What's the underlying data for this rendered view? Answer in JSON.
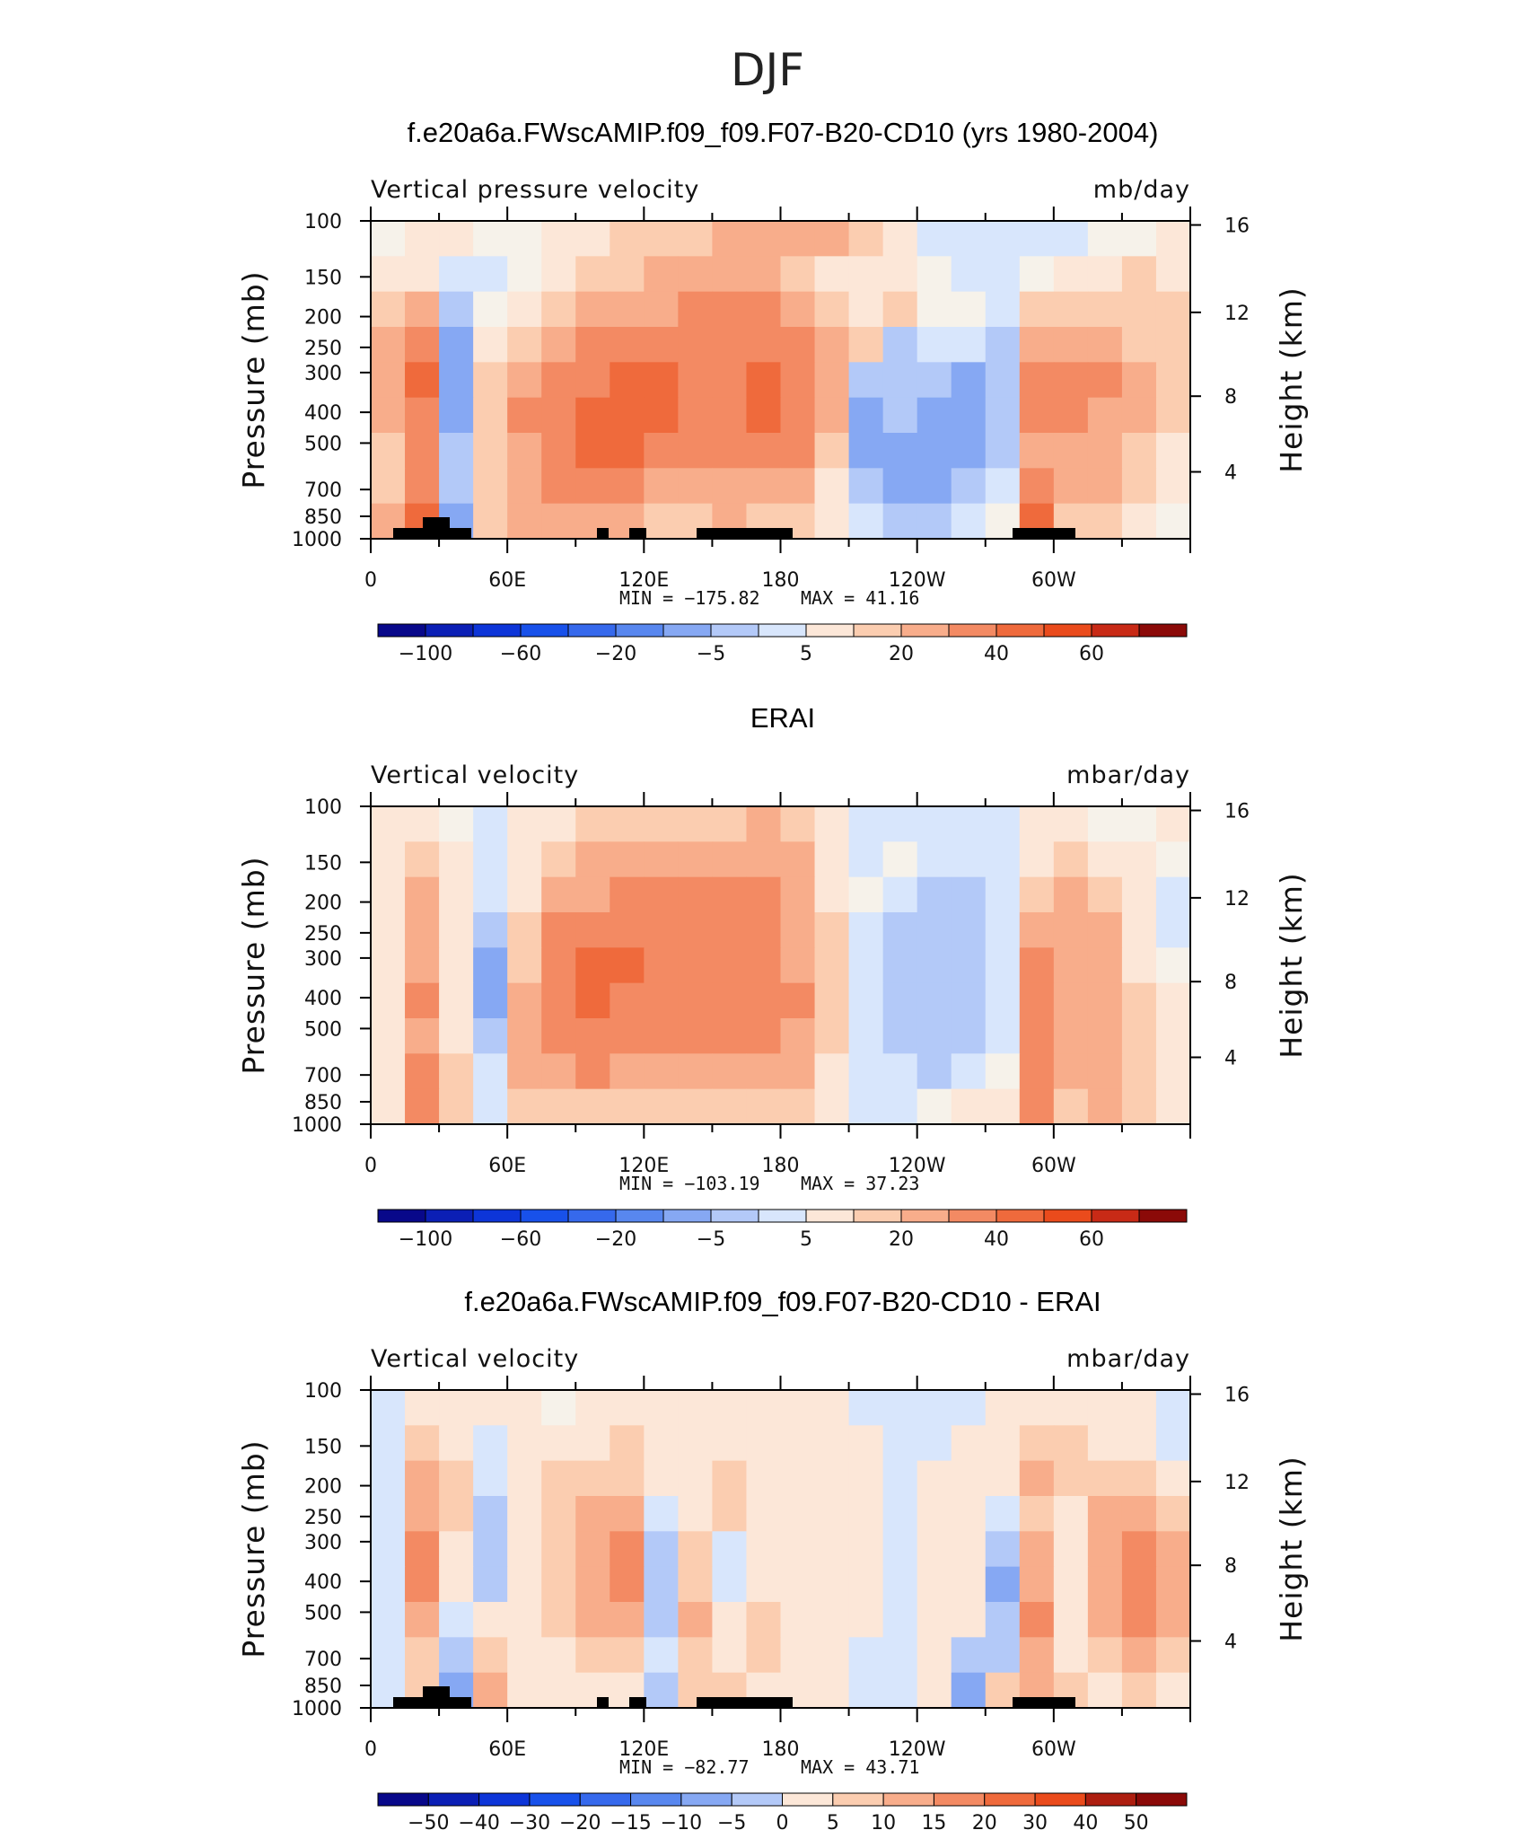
{
  "figure_title": "DJF",
  "chart_data": [
    {
      "type": "heatmap",
      "title": "f.e20a6a.FWscAMIP.f09_f09.F07-B20-CD10 (yrs 1980-2004)",
      "variable_label": "Vertical pressure velocity",
      "units": "mb/day",
      "ylabel": "Pressure (mb)",
      "y2label": "Height (km)",
      "y_ticks": [
        "100",
        "150",
        "200",
        "250",
        "300",
        "400",
        "500",
        "700",
        "850",
        "1000"
      ],
      "y2_ticks": [
        "16",
        "12",
        "8",
        "4"
      ],
      "x_ticks": [
        "0",
        "60E",
        "120E",
        "180",
        "120W",
        "60W"
      ],
      "stats": {
        "min_label": "MIN =",
        "min": "-175.82",
        "max_label": "MAX =",
        "max": "41.16"
      },
      "colorbar_labels": [
        "-100",
        "-60",
        "-20",
        "-5",
        "5",
        "20",
        "40",
        "60"
      ],
      "cells": [
        [
          0,
          1,
          1,
          0,
          0,
          1,
          1,
          2,
          2,
          2,
          3,
          3,
          3,
          3,
          2,
          1,
          -1,
          -1,
          -1,
          -1,
          -1,
          0,
          0,
          1
        ],
        [
          1,
          1,
          -1,
          -1,
          0,
          1,
          2,
          2,
          3,
          3,
          3,
          3,
          2,
          1,
          1,
          1,
          0,
          -1,
          -1,
          0,
          1,
          1,
          2,
          1
        ],
        [
          2,
          3,
          -2,
          0,
          1,
          2,
          3,
          3,
          3,
          4,
          4,
          4,
          3,
          2,
          1,
          2,
          0,
          0,
          -1,
          2,
          2,
          2,
          2,
          2
        ],
        [
          3,
          4,
          -3,
          1,
          2,
          3,
          4,
          4,
          4,
          4,
          4,
          4,
          4,
          3,
          2,
          -2,
          -1,
          -1,
          -2,
          3,
          3,
          3,
          2,
          2
        ],
        [
          3,
          5,
          -3,
          2,
          3,
          4,
          4,
          5,
          5,
          4,
          4,
          5,
          4,
          3,
          -2,
          -2,
          -2,
          -3,
          -2,
          4,
          4,
          4,
          3,
          2
        ],
        [
          3,
          4,
          -3,
          2,
          4,
          4,
          5,
          5,
          5,
          4,
          4,
          5,
          4,
          3,
          -3,
          -2,
          -3,
          -3,
          -2,
          4,
          4,
          3,
          3,
          2
        ],
        [
          2,
          4,
          -2,
          2,
          3,
          4,
          5,
          5,
          4,
          4,
          4,
          4,
          4,
          2,
          -3,
          -3,
          -3,
          -3,
          -2,
          3,
          3,
          3,
          2,
          1
        ],
        [
          2,
          4,
          -2,
          2,
          3,
          4,
          4,
          4,
          3,
          3,
          3,
          3,
          3,
          1,
          -2,
          -3,
          -3,
          -2,
          -1,
          4,
          3,
          3,
          2,
          1
        ],
        [
          3,
          5,
          -3,
          2,
          3,
          3,
          3,
          3,
          2,
          2,
          3,
          2,
          2,
          1,
          -1,
          -2,
          -2,
          -1,
          0,
          5,
          2,
          2,
          1,
          0
        ]
      ]
    },
    {
      "type": "heatmap",
      "title": "ERAI",
      "variable_label": "Vertical velocity",
      "units": "mbar/day",
      "ylabel": "Pressure (mb)",
      "y2label": "Height (km)",
      "y_ticks": [
        "100",
        "150",
        "200",
        "250",
        "300",
        "400",
        "500",
        "700",
        "850",
        "1000"
      ],
      "y2_ticks": [
        "16",
        "12",
        "8",
        "4"
      ],
      "x_ticks": [
        "0",
        "60E",
        "120E",
        "180",
        "120W",
        "60W"
      ],
      "stats": {
        "min_label": "MIN =",
        "min": "-103.19",
        "max_label": "MAX =",
        "max": "37.23"
      },
      "colorbar_labels": [
        "-100",
        "-60",
        "-20",
        "-5",
        "5",
        "20",
        "40",
        "60"
      ],
      "cells": [
        [
          1,
          1,
          0,
          -1,
          1,
          1,
          2,
          2,
          2,
          2,
          2,
          3,
          2,
          1,
          -1,
          -1,
          -1,
          -1,
          -1,
          1,
          1,
          0,
          0,
          1
        ],
        [
          1,
          2,
          1,
          -1,
          1,
          2,
          3,
          3,
          3,
          3,
          3,
          3,
          3,
          1,
          -1,
          0,
          -1,
          -1,
          -1,
          1,
          2,
          1,
          1,
          0
        ],
        [
          1,
          3,
          1,
          -1,
          1,
          3,
          3,
          4,
          4,
          4,
          4,
          4,
          3,
          1,
          0,
          -1,
          -2,
          -2,
          -1,
          2,
          3,
          2,
          1,
          -1
        ],
        [
          1,
          3,
          1,
          -2,
          2,
          4,
          4,
          4,
          4,
          4,
          4,
          4,
          3,
          2,
          -1,
          -2,
          -2,
          -2,
          -1,
          3,
          3,
          3,
          1,
          -1
        ],
        [
          1,
          3,
          1,
          -3,
          2,
          4,
          5,
          5,
          4,
          4,
          4,
          4,
          3,
          2,
          -1,
          -2,
          -2,
          -2,
          -1,
          4,
          3,
          3,
          1,
          0
        ],
        [
          1,
          4,
          1,
          -3,
          3,
          4,
          5,
          4,
          4,
          4,
          4,
          4,
          4,
          2,
          -1,
          -2,
          -2,
          -2,
          -1,
          4,
          3,
          3,
          2,
          1
        ],
        [
          1,
          3,
          1,
          -2,
          3,
          4,
          4,
          4,
          4,
          4,
          4,
          4,
          3,
          2,
          -1,
          -2,
          -2,
          -2,
          -1,
          4,
          3,
          3,
          2,
          1
        ],
        [
          1,
          4,
          2,
          -1,
          3,
          3,
          4,
          3,
          3,
          3,
          3,
          3,
          3,
          1,
          -1,
          -1,
          -2,
          -1,
          0,
          4,
          3,
          3,
          2,
          1
        ],
        [
          1,
          4,
          2,
          -1,
          2,
          2,
          2,
          2,
          2,
          2,
          2,
          2,
          2,
          1,
          -1,
          -1,
          0,
          1,
          1,
          4,
          2,
          3,
          2,
          1
        ]
      ]
    },
    {
      "type": "heatmap",
      "title": "f.e20a6a.FWscAMIP.f09_f09.F07-B20-CD10 - ERAI",
      "variable_label": "Vertical velocity",
      "units": "mbar/day",
      "ylabel": "Pressure (mb)",
      "y2label": "Height (km)",
      "y_ticks": [
        "100",
        "150",
        "200",
        "250",
        "300",
        "400",
        "500",
        "700",
        "850",
        "1000"
      ],
      "y2_ticks": [
        "16",
        "12",
        "8",
        "4"
      ],
      "x_ticks": [
        "0",
        "60E",
        "120E",
        "180",
        "120W",
        "60W"
      ],
      "stats": {
        "min_label": "MIN =",
        "min": "-82.77",
        "max_label": "MAX =",
        "max": "43.71"
      },
      "colorbar_labels": [
        "-50",
        "-40",
        "-30",
        "-20",
        "-15",
        "-10",
        "-5",
        "0",
        "5",
        "10",
        "15",
        "20",
        "30",
        "40",
        "50"
      ],
      "cells": [
        [
          -1,
          1,
          1,
          1,
          1,
          0,
          1,
          1,
          1,
          1,
          1,
          1,
          1,
          1,
          -1,
          -1,
          -1,
          -1,
          1,
          1,
          1,
          1,
          1,
          -1
        ],
        [
          -1,
          2,
          1,
          -1,
          1,
          1,
          1,
          2,
          1,
          1,
          1,
          1,
          1,
          1,
          1,
          -1,
          -1,
          1,
          1,
          2,
          2,
          1,
          1,
          -1
        ],
        [
          -1,
          3,
          2,
          -1,
          1,
          2,
          2,
          2,
          1,
          1,
          2,
          1,
          1,
          1,
          1,
          -1,
          1,
          1,
          1,
          3,
          2,
          2,
          2,
          1
        ],
        [
          -1,
          3,
          2,
          -2,
          1,
          2,
          3,
          3,
          -1,
          1,
          2,
          1,
          1,
          1,
          1,
          -1,
          1,
          1,
          -1,
          2,
          1,
          3,
          3,
          2
        ],
        [
          -1,
          4,
          1,
          -2,
          1,
          2,
          3,
          4,
          -2,
          2,
          -1,
          1,
          1,
          1,
          1,
          -1,
          1,
          1,
          -2,
          3,
          1,
          3,
          4,
          3
        ],
        [
          -1,
          4,
          1,
          -2,
          1,
          2,
          3,
          4,
          -2,
          2,
          -1,
          1,
          1,
          1,
          1,
          -1,
          1,
          1,
          -3,
          3,
          1,
          3,
          4,
          3
        ],
        [
          -1,
          3,
          -1,
          1,
          1,
          2,
          3,
          3,
          -2,
          3,
          1,
          2,
          1,
          1,
          1,
          -1,
          1,
          1,
          -2,
          4,
          1,
          3,
          4,
          3
        ],
        [
          -1,
          2,
          -2,
          2,
          1,
          1,
          2,
          2,
          -1,
          2,
          1,
          2,
          1,
          1,
          -1,
          -1,
          1,
          -2,
          -2,
          3,
          1,
          2,
          3,
          2
        ],
        [
          -1,
          2,
          -3,
          3,
          1,
          1,
          1,
          1,
          -2,
          2,
          2,
          1,
          1,
          1,
          -1,
          -1,
          1,
          -3,
          2,
          3,
          2,
          1,
          2,
          1
        ]
      ]
    }
  ]
}
